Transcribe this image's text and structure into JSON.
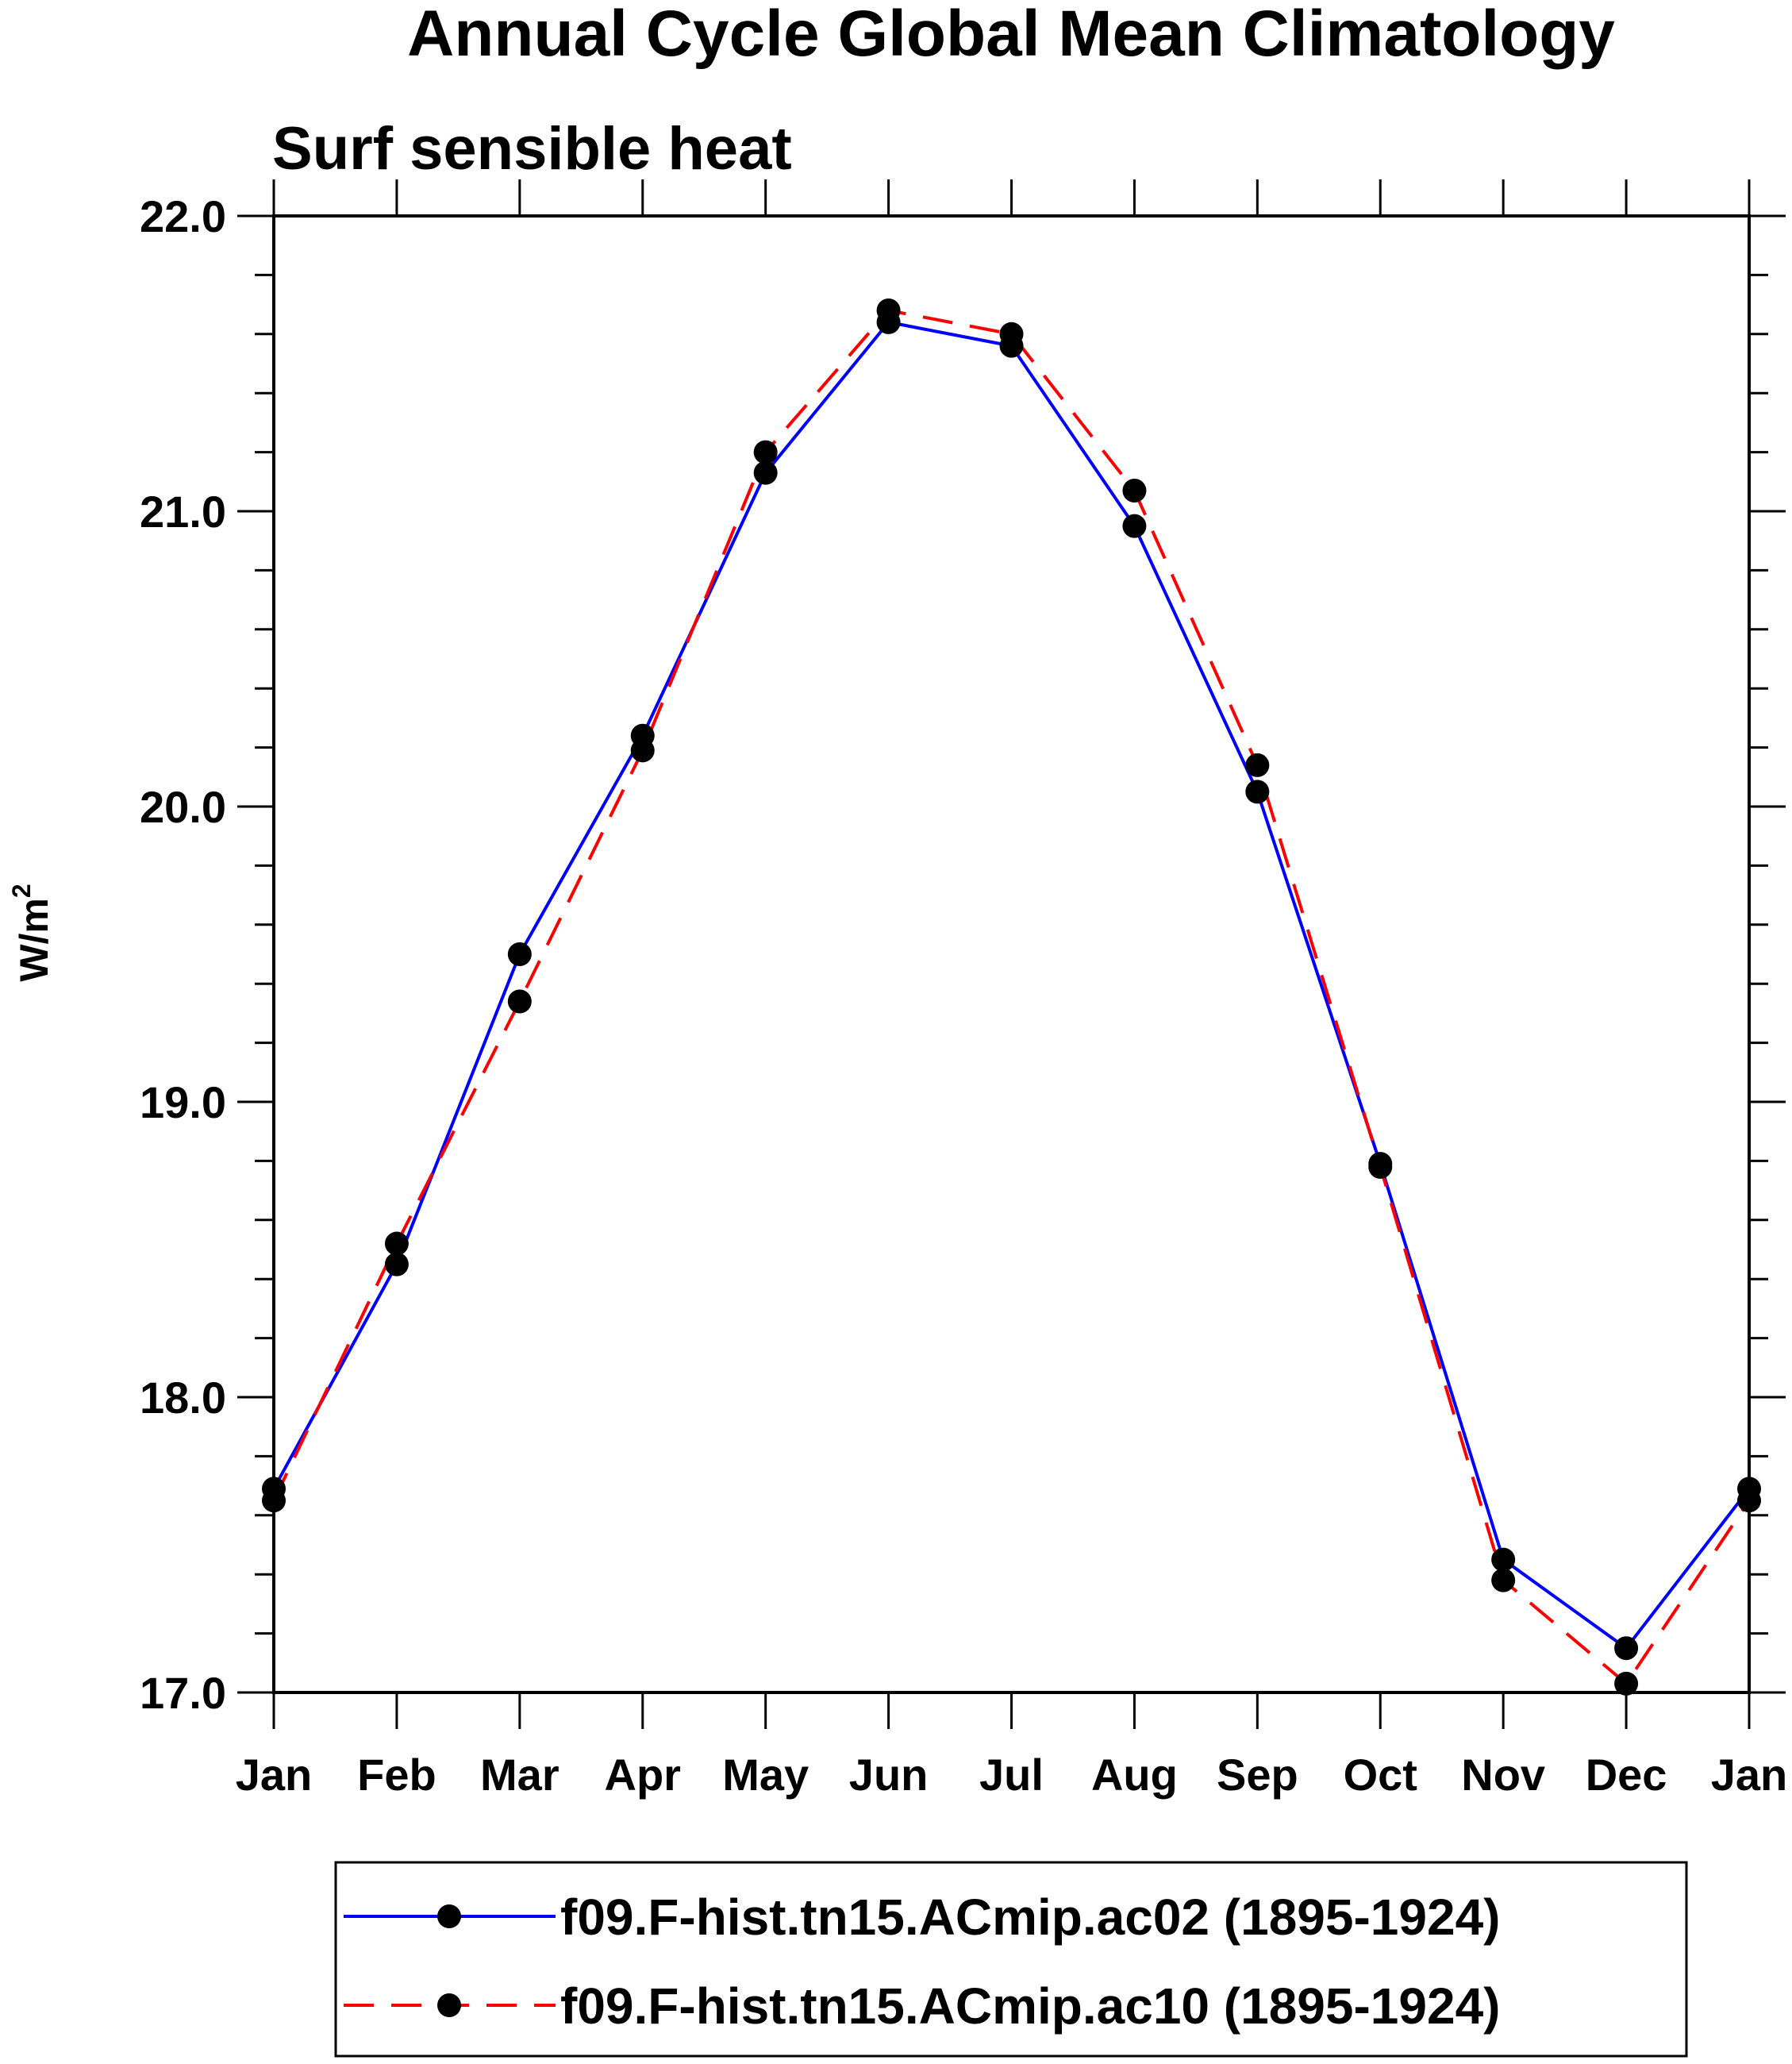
{
  "chart_data": {
    "type": "line",
    "title": "Annual Cycle Global Mean Climatology",
    "subtitle": "Surf sensible heat",
    "ylabel": "W/m",
    "ylabel_superscript": "2",
    "xlabel": "",
    "ylim": [
      17.0,
      22.0
    ],
    "yticks": [
      17.0,
      18.0,
      19.0,
      20.0,
      21.0,
      22.0
    ],
    "ytick_labels": [
      "17.0",
      "18.0",
      "19.0",
      "20.0",
      "21.0",
      "22.0"
    ],
    "categories": [
      "Jan",
      "Feb",
      "Mar",
      "Apr",
      "May",
      "Jun",
      "Jul",
      "Aug",
      "Sep",
      "Oct",
      "Nov",
      "Dec",
      "Jan"
    ],
    "series": [
      {
        "name": "f09.F-hist.tn15.ACmip.ac02 (1895-1924)",
        "color": "#0000ff",
        "style": "solid",
        "values": [
          17.69,
          18.45,
          19.5,
          20.24,
          21.13,
          21.64,
          21.56,
          20.95,
          20.05,
          18.79,
          17.45,
          17.15,
          17.69
        ]
      },
      {
        "name": "f09.F-hist.tn15.ACmip.ac10 (1895-1924)",
        "color": "#ff0000",
        "style": "dashed",
        "values": [
          17.65,
          18.52,
          19.34,
          20.19,
          21.2,
          21.68,
          21.6,
          21.07,
          20.14,
          18.78,
          17.38,
          17.03,
          17.65
        ]
      }
    ],
    "legend_position": "bottom"
  }
}
